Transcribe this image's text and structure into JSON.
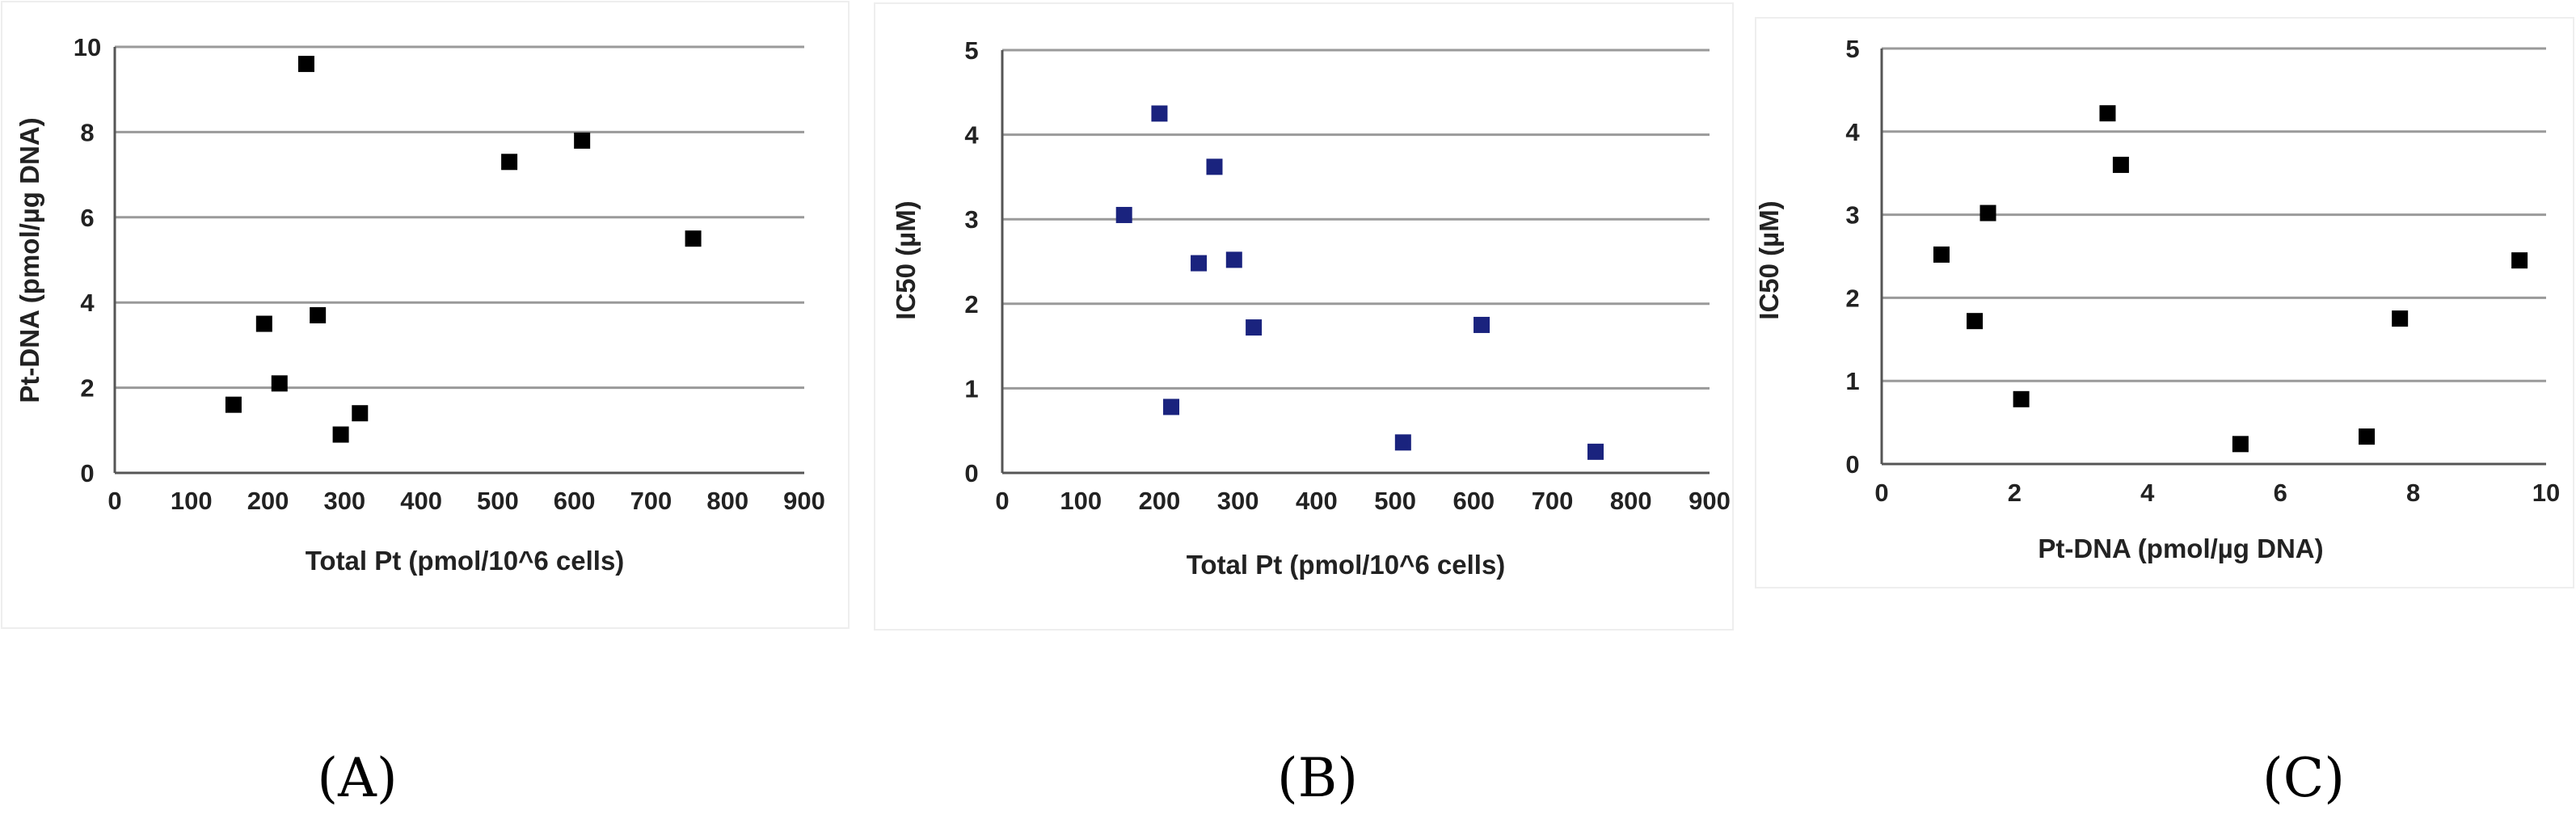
{
  "chart_data": [
    {
      "type": "scatter",
      "panel": "(A)",
      "xlabel": "Total Pt (pmol/10^6 cells)",
      "ylabel": "Pt-DNA (pmol/µg DNA)",
      "xlim": [
        0,
        900
      ],
      "ylim": [
        0,
        10
      ],
      "xticks": [
        "0",
        "100",
        "200",
        "300",
        "400",
        "500",
        "600",
        "700",
        "800",
        "900"
      ],
      "yticks": [
        "0",
        "2",
        "4",
        "6",
        "8",
        "10"
      ],
      "grid": "horizontal",
      "marker_color": "#000000",
      "points": [
        {
          "x": 155,
          "y": 1.6
        },
        {
          "x": 195,
          "y": 3.5
        },
        {
          "x": 215,
          "y": 2.1
        },
        {
          "x": 250,
          "y": 9.6
        },
        {
          "x": 265,
          "y": 3.7
        },
        {
          "x": 295,
          "y": 0.9
        },
        {
          "x": 320,
          "y": 1.4
        },
        {
          "x": 515,
          "y": 7.3
        },
        {
          "x": 610,
          "y": 7.8
        },
        {
          "x": 755,
          "y": 5.5
        }
      ]
    },
    {
      "type": "scatter",
      "panel": "(B)",
      "xlabel": "Total Pt (pmol/10^6 cells)",
      "ylabel": "IC50 (µM)",
      "xlim": [
        0,
        900
      ],
      "ylim": [
        0,
        5
      ],
      "xticks": [
        "0",
        "100",
        "200",
        "300",
        "400",
        "500",
        "600",
        "700",
        "800",
        "900"
      ],
      "yticks": [
        "0",
        "1",
        "2",
        "3",
        "4",
        "5"
      ],
      "grid": "horizontal",
      "marker_color": "#1a237e",
      "points": [
        {
          "x": 155,
          "y": 3.05
        },
        {
          "x": 200,
          "y": 4.25
        },
        {
          "x": 215,
          "y": 0.78
        },
        {
          "x": 250,
          "y": 2.48
        },
        {
          "x": 270,
          "y": 3.62
        },
        {
          "x": 295,
          "y": 2.52
        },
        {
          "x": 320,
          "y": 1.72
        },
        {
          "x": 510,
          "y": 0.36
        },
        {
          "x": 610,
          "y": 1.75
        },
        {
          "x": 755,
          "y": 0.25
        }
      ]
    },
    {
      "type": "scatter",
      "panel": "(C)",
      "xlabel": "Pt-DNA (pmol/µg DNA)",
      "ylabel": "IC50 (µM)",
      "xlim": [
        0,
        10
      ],
      "ylim": [
        0,
        5
      ],
      "xticks": [
        "0",
        "2",
        "4",
        "6",
        "8",
        "10"
      ],
      "yticks": [
        "0",
        "1",
        "2",
        "3",
        "4",
        "5"
      ],
      "grid": "horizontal",
      "marker_color": "#000000",
      "points": [
        {
          "x": 0.9,
          "y": 2.52
        },
        {
          "x": 1.4,
          "y": 1.72
        },
        {
          "x": 1.6,
          "y": 3.02
        },
        {
          "x": 2.1,
          "y": 0.78
        },
        {
          "x": 3.4,
          "y": 4.22
        },
        {
          "x": 3.6,
          "y": 3.6
        },
        {
          "x": 5.4,
          "y": 0.24
        },
        {
          "x": 7.3,
          "y": 0.33
        },
        {
          "x": 7.8,
          "y": 1.75
        },
        {
          "x": 9.6,
          "y": 2.45
        }
      ]
    }
  ],
  "panel_labels": [
    "(A)",
    "(B)",
    "(C)"
  ]
}
